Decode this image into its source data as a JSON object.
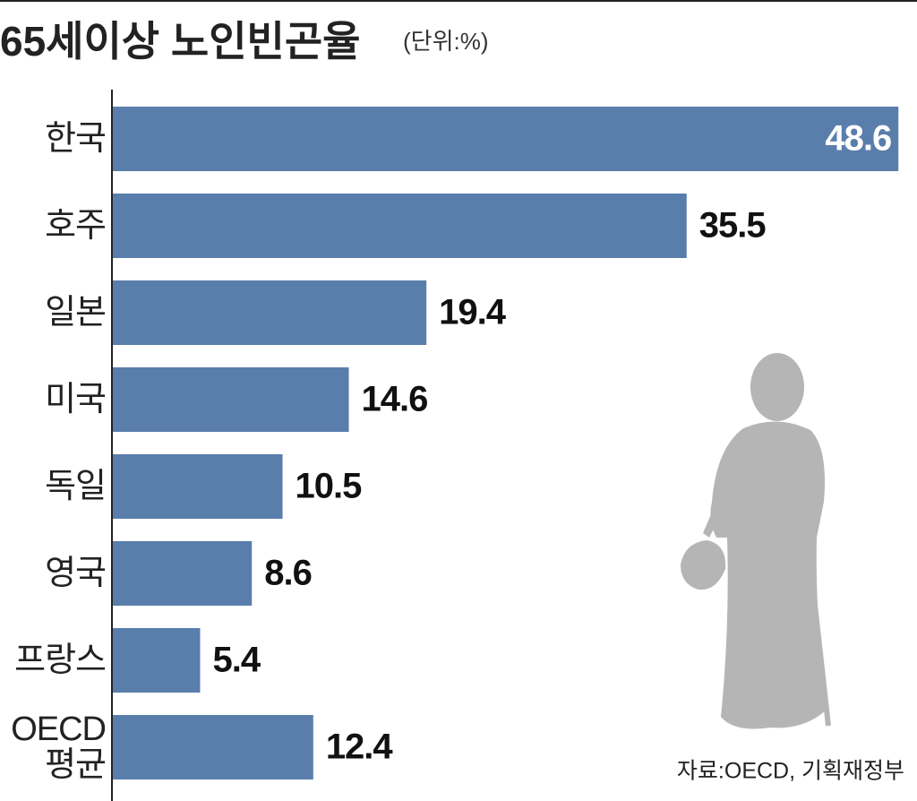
{
  "chart_data": {
    "type": "hbar",
    "title": "65세이상 노인빈곤율",
    "subtitle": "(단위:%)",
    "categories": [
      "한국",
      "호주",
      "일본",
      "미국",
      "독일",
      "영국",
      "프랑스",
      "OECD\n평균"
    ],
    "values": [
      48.6,
      35.5,
      19.4,
      14.6,
      10.5,
      8.6,
      5.4,
      12.4
    ],
    "color": "#5a7eac",
    "source": "자료:OECD, 기획재정부"
  }
}
